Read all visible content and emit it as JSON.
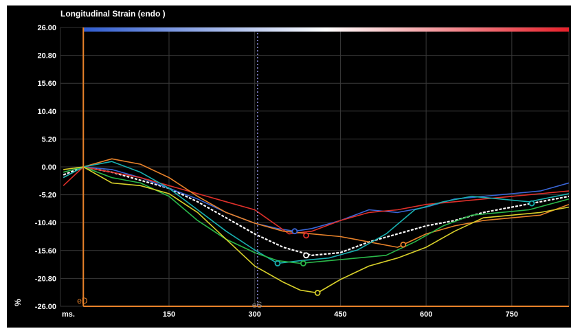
{
  "chart_data": {
    "type": "line",
    "title": "Longitudinal Strain (endo )",
    "xlabel": "ms.",
    "ylabel": "%",
    "xlim": [
      -40,
      850
    ],
    "ylim": [
      -26.0,
      26.0
    ],
    "x_ticks": [
      "150",
      "300",
      "450",
      "600",
      "750"
    ],
    "y_ticks": [
      "26.00",
      "20.80",
      "15.60",
      "10.40",
      "5.20",
      "0.00",
      "-5.20",
      "-10.40",
      "-15.60",
      "-20.80",
      "-26.00"
    ],
    "grid": true,
    "markers": [
      {
        "label": "eD",
        "x": 0,
        "color": "#e8822a"
      },
      {
        "label": "eS",
        "x": 305,
        "color": "#8a8ad8"
      }
    ],
    "colorbar": {
      "from": "#2e5bd0",
      "mid": "#ffffff",
      "to": "#e8202a"
    },
    "series": [
      {
        "color": "#ffffff",
        "x": [
          -35,
          0,
          50,
          100,
          150,
          200,
          250,
          300,
          350,
          400,
          450,
          500,
          550,
          600,
          650,
          700,
          750,
          800,
          850
        ],
        "y": [
          -1.5,
          0,
          -1,
          -2.5,
          -4,
          -6.5,
          -9.5,
          -12.5,
          -15,
          -16.5,
          -16,
          -14,
          -12.5,
          -11,
          -10,
          -8.5,
          -7.5,
          -6.5,
          -5.5
        ]
      },
      {
        "color": "#3a66d6",
        "x": [
          -35,
          0,
          50,
          100,
          150,
          200,
          250,
          300,
          340,
          370,
          400,
          450,
          500,
          550,
          600,
          650,
          700,
          750,
          800,
          850
        ],
        "y": [
          -2,
          0,
          -0.5,
          -2,
          -4,
          -6,
          -8.5,
          -10.5,
          -11.5,
          -12,
          -11.5,
          -10,
          -8,
          -8.5,
          -7.5,
          -6,
          -5.5,
          -5,
          -4.5,
          -3
        ]
      },
      {
        "color": "#e0302a",
        "x": [
          -35,
          0,
          50,
          100,
          150,
          200,
          250,
          300,
          340,
          360,
          400,
          450,
          500,
          550,
          600,
          650,
          700,
          750,
          800,
          850
        ],
        "y": [
          -3.5,
          0,
          -1,
          -2,
          -3.5,
          -5,
          -6.5,
          -8,
          -11,
          -12.5,
          -12,
          -10,
          -8.5,
          -8,
          -7,
          -6.5,
          -6,
          -5.5,
          -5,
          -4.5
        ]
      },
      {
        "color": "#e8822a",
        "x": [
          -35,
          0,
          50,
          100,
          150,
          200,
          250,
          300,
          350,
          400,
          450,
          500,
          550,
          600,
          650,
          700,
          750,
          800,
          850
        ],
        "y": [
          -2,
          0,
          1.5,
          0.5,
          -2,
          -5.5,
          -8.5,
          -10.5,
          -12,
          -12.5,
          -13,
          -14,
          -15,
          -12.5,
          -11,
          -10,
          -9.5,
          -9,
          -7
        ]
      },
      {
        "color": "#18b0b0",
        "x": [
          -35,
          0,
          50,
          100,
          150,
          200,
          250,
          300,
          340,
          380,
          430,
          480,
          530,
          580,
          630,
          680,
          730,
          780,
          850
        ],
        "y": [
          -2,
          0,
          1,
          -1,
          -4,
          -8,
          -12,
          -15.5,
          -18,
          -17.5,
          -17,
          -15.5,
          -12.5,
          -8,
          -6.5,
          -5.5,
          -6,
          -6.5,
          -5
        ]
      },
      {
        "color": "#2ab84a",
        "x": [
          -35,
          0,
          50,
          100,
          150,
          200,
          250,
          300,
          340,
          380,
          430,
          480,
          530,
          580,
          630,
          680,
          730,
          780,
          850
        ],
        "y": [
          -1,
          0,
          -2,
          -3,
          -5.5,
          -10,
          -13.5,
          -16,
          -17.5,
          -18,
          -17.5,
          -17,
          -16.5,
          -14,
          -11,
          -9,
          -8.5,
          -8,
          -6
        ]
      },
      {
        "color": "#d8d02a",
        "x": [
          -35,
          0,
          50,
          100,
          150,
          200,
          250,
          300,
          350,
          380,
          410,
          450,
          500,
          550,
          600,
          650,
          700,
          750,
          800,
          850
        ],
        "y": [
          -0.5,
          0,
          -3,
          -3.5,
          -5,
          -8.5,
          -13.5,
          -18.5,
          -21.5,
          -23,
          -23.5,
          -21,
          -18.5,
          -17,
          -15,
          -12,
          -9.5,
          -9,
          -8.5,
          -7.5
        ]
      }
    ],
    "point_markers": [
      {
        "color": "#3a66d6",
        "x": 370,
        "y": -12
      },
      {
        "color": "#e0302a",
        "x": 390,
        "y": -12.8
      },
      {
        "color": "#ffffff",
        "x": 390,
        "y": -16.5
      },
      {
        "color": "#18b0b0",
        "x": 340,
        "y": -18
      },
      {
        "color": "#2ab84a",
        "x": 385,
        "y": -18
      },
      {
        "color": "#d8d02a",
        "x": 410,
        "y": -23.5
      },
      {
        "color": "#e8822a",
        "x": 560,
        "y": -14.5
      },
      {
        "color": "#18b0b0",
        "x": 785,
        "y": -6.8
      }
    ]
  }
}
